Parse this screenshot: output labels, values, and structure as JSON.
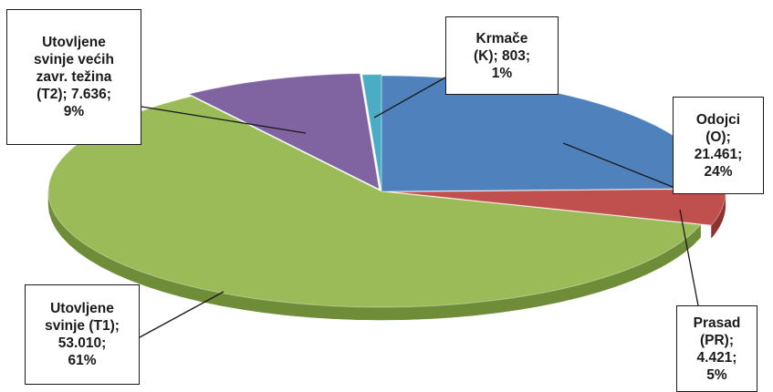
{
  "chart_data": {
    "type": "pie",
    "style": "3d-exploded",
    "title": "",
    "slices": [
      {
        "name": "Odojci",
        "code": "(O);",
        "value": "21.461;",
        "percent": "24%",
        "numeric_value": 21461,
        "color": "#4f81bd",
        "side_color": "#35608f"
      },
      {
        "name": "Prasad",
        "code": "(PR);",
        "value": "4.421;",
        "percent": "5%",
        "numeric_value": 4421,
        "color": "#c0504d",
        "side_color": "#8c3230"
      },
      {
        "name": "Utovljene svinje",
        "code": "(T1);",
        "value": "53.010;",
        "percent": "61%",
        "numeric_value": 53010,
        "color": "#9bbb59",
        "side_color": "#6f8c38"
      },
      {
        "name": "Utovljene svinje većih zavr. težina",
        "code": "(T2);",
        "value": "7.636;",
        "percent": "9%",
        "numeric_value": 7636,
        "color": "#8064a2",
        "side_color": "#5a4577"
      },
      {
        "name": "Krmače",
        "code": "(K);",
        "value": "803;",
        "percent": "1%",
        "numeric_value": 803,
        "color": "#4bacc6",
        "side_color": "#2f7f94"
      }
    ]
  },
  "labels": {
    "t2": {
      "line1": "Utovljene",
      "line2": "svinje većih",
      "line3": "zavr. težina",
      "line4": "(T2); 7.636;",
      "line5": "9%"
    },
    "k": {
      "line1": "Krmače",
      "line2": "(K); 803;",
      "line3": "1%"
    },
    "o": {
      "line1": "Odojci",
      "line2": "(O);",
      "line3": "21.461;",
      "line4": "24%"
    },
    "t1": {
      "line1": "Utovljene",
      "line2": "svinje (T1);",
      "line3": "53.010;",
      "line4": "61%"
    },
    "pr": {
      "line1": "Prasad",
      "line2": "(PR);",
      "line3": "4.421;",
      "line4": "5%"
    }
  }
}
